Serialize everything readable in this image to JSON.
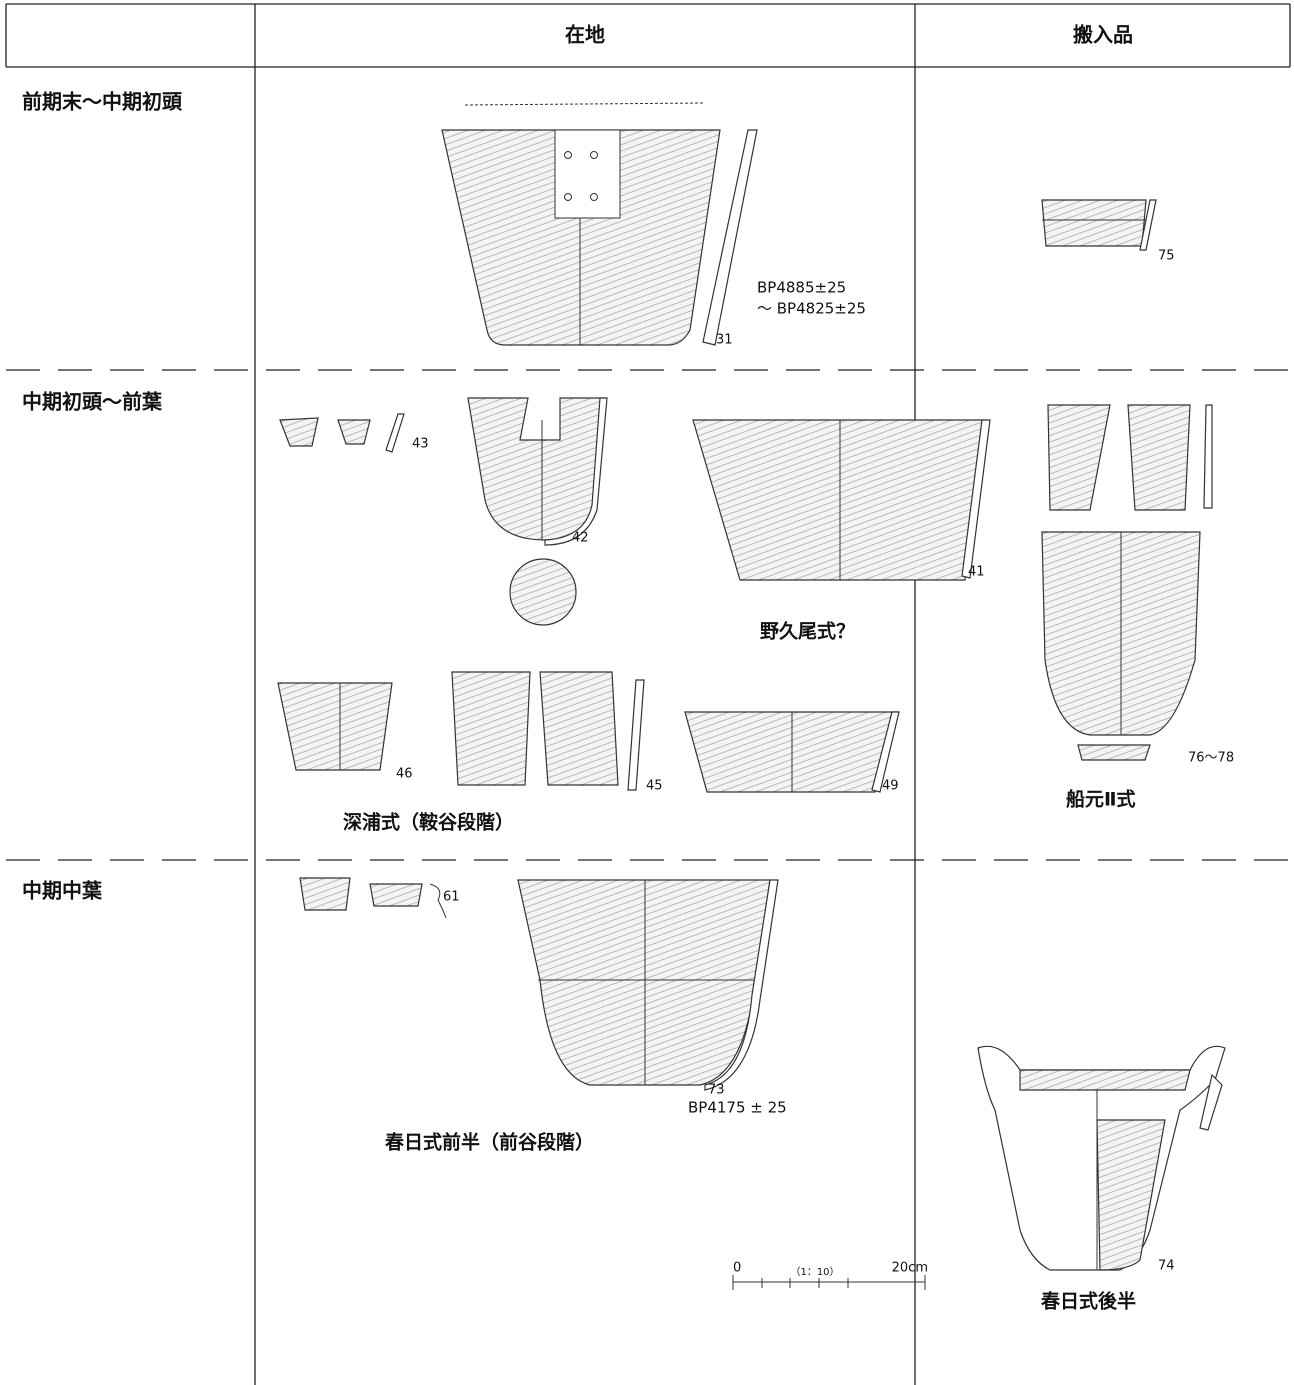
{
  "table": {
    "columns": [
      "在地",
      "搬入品"
    ],
    "rows": [
      {
        "period": "前期末〜中期初頭",
        "local": {
          "labels": [
            "BP4885±25",
            "〜 BP4825±25",
            "31"
          ]
        },
        "imported": {
          "labels": [
            "75"
          ]
        }
      },
      {
        "period": "中期初頭〜前葉",
        "local": {
          "labels": [
            "43",
            "42",
            "41",
            "野久尾式？",
            "46",
            "45",
            "49",
            "深浦式（鞍谷段階）"
          ]
        },
        "imported": {
          "labels": [
            "76〜78",
            "船元Ⅱ式"
          ]
        }
      },
      {
        "period": "中期中葉",
        "local": {
          "labels": [
            "61",
            "73",
            "BP4175 ± 25",
            "春日式前半（前谷段階）"
          ]
        },
        "imported": {
          "labels": [
            "74",
            "春日式後半"
          ]
        }
      }
    ],
    "scale": {
      "labels": [
        "0",
        "（1：10）",
        "20cm"
      ]
    }
  }
}
